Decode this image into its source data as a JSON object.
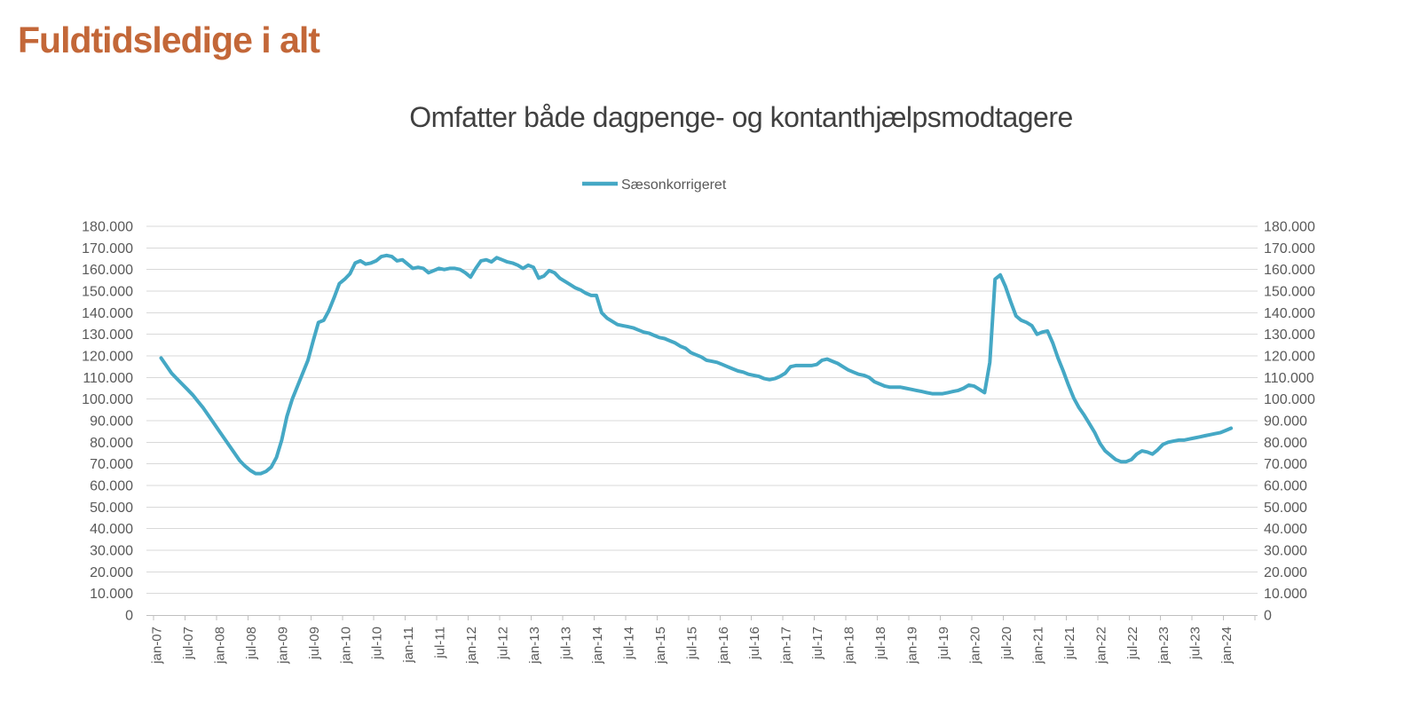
{
  "page": {
    "title": "Fuldtidsledige i alt",
    "title_color": "#C36738"
  },
  "chart": {
    "title": "Omfatter både dagpenge- og kontanthjælpsmodtagere",
    "legend": {
      "label": "Sæsonkorrigeret"
    },
    "colors": {
      "series": "#45A8C5",
      "gridline": "#D9D9D9",
      "axis": "#BFBFBF",
      "label": "#595959",
      "title": "#404040"
    }
  },
  "chart_data": {
    "type": "line",
    "title": "Omfatter både dagpenge- og kontanthjælpsmodtagere",
    "series_name": "Sæsonkorrigeret",
    "frequency": "monthly",
    "x_start": "jan-07",
    "x_end": "jan-24",
    "grid": true,
    "legend_position": "top",
    "y_axis_sides": "both",
    "ylim": [
      0,
      180000
    ],
    "y_tick_step": 10000,
    "y_tick_labels": [
      "0",
      "10.000",
      "20.000",
      "30.000",
      "40.000",
      "50.000",
      "60.000",
      "70.000",
      "80.000",
      "90.000",
      "100.000",
      "110.000",
      "120.000",
      "130.000",
      "140.000",
      "150.000",
      "160.000",
      "170.000",
      "180.000"
    ],
    "x_tick_labels": [
      "jan-07",
      "jul-07",
      "jan-08",
      "jul-08",
      "jan-09",
      "jul-09",
      "jan-10",
      "jul-10",
      "jan-11",
      "jul-11",
      "jan-12",
      "jul-12",
      "jan-13",
      "jul-13",
      "jan-14",
      "jul-14",
      "jan-15",
      "jul-15",
      "jan-16",
      "jul-16",
      "jan-17",
      "jul-17",
      "jan-18",
      "jul-18",
      "jan-19",
      "jul-19",
      "jan-20",
      "jul-20",
      "jan-21",
      "jul-21",
      "jan-22",
      "jul-22",
      "jan-23",
      "jul-23",
      "jan-24"
    ],
    "values": [
      119000,
      115500,
      112000,
      109500,
      107000,
      104500,
      102000,
      99000,
      96000,
      92500,
      89000,
      85500,
      82000,
      78500,
      75000,
      71500,
      69000,
      67000,
      65500,
      65500,
      66500,
      68500,
      73000,
      81000,
      92000,
      100000,
      106000,
      112000,
      118000,
      127000,
      135500,
      136500,
      141000,
      147000,
      153500,
      155500,
      158000,
      163000,
      164000,
      162500,
      163000,
      164000,
      166000,
      166500,
      166000,
      164000,
      164500,
      162500,
      160500,
      161000,
      160500,
      158500,
      159500,
      160500,
      160000,
      160500,
      160500,
      160000,
      158500,
      156500,
      160500,
      164000,
      164500,
      163500,
      165500,
      164500,
      163500,
      163000,
      162000,
      160500,
      162000,
      161000,
      156000,
      157000,
      159500,
      158500,
      156000,
      154500,
      153000,
      151500,
      150500,
      149000,
      148000,
      148000,
      140000,
      137500,
      136000,
      134500,
      134000,
      133500,
      133000,
      132000,
      131000,
      130500,
      129500,
      128500,
      128000,
      127000,
      126000,
      124500,
      123500,
      121500,
      120500,
      119500,
      118000,
      117500,
      117000,
      116000,
      115000,
      114000,
      113000,
      112500,
      111500,
      111000,
      110500,
      109500,
      109000,
      109500,
      110500,
      112000,
      115000,
      115500,
      115500,
      115500,
      115500,
      116000,
      118000,
      118500,
      117500,
      116500,
      115000,
      113500,
      112500,
      111500,
      111000,
      110000,
      108000,
      107000,
      106000,
      105500,
      105500,
      105500,
      105000,
      104500,
      104000,
      103500,
      103000,
      102500,
      102500,
      102500,
      103000,
      103500,
      104000,
      105000,
      106500,
      106000,
      104500,
      103000,
      117000,
      155500,
      157500,
      152000,
      145000,
      138500,
      136500,
      135500,
      134000,
      130000,
      131000,
      131500,
      126000,
      119000,
      113000,
      106500,
      100500,
      96000,
      92500,
      88500,
      84500,
      79500,
      76000,
      74000,
      72000,
      71000,
      71000,
      72000,
      74500,
      76000,
      75500,
      74500,
      76500,
      79000,
      80000,
      80500,
      81000,
      81000,
      81500,
      82000,
      82500,
      83000,
      83500,
      84000,
      84500,
      85500,
      86500
    ]
  }
}
